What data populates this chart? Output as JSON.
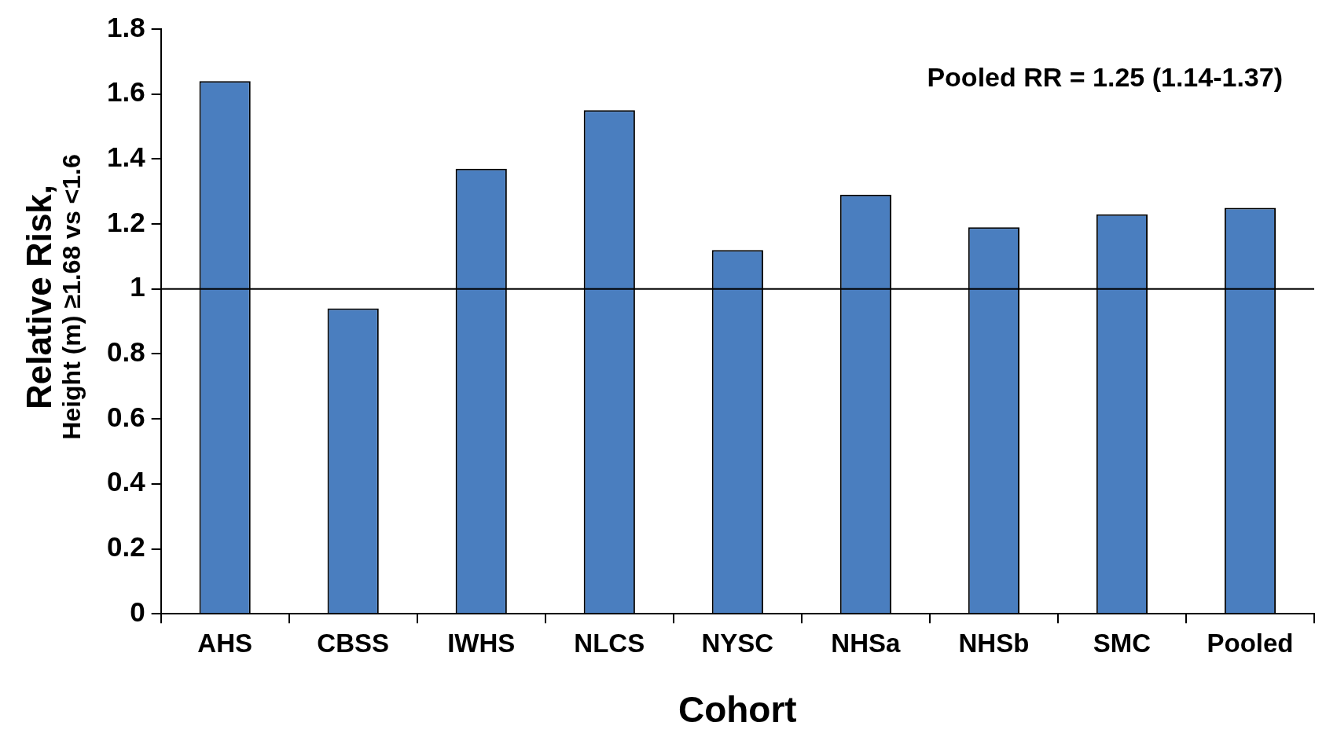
{
  "chart_data": {
    "type": "bar",
    "xlabel": "Cohort",
    "ylabel": "Relative Risk,\nHeight (m) ≥1.68 vs <1.6",
    "categories": [
      "AHS",
      "CBSS",
      "IWHS",
      "NLCS",
      "NYSC",
      "NHSa",
      "NHSb",
      "SMC",
      "Pooled"
    ],
    "values": [
      1.64,
      0.94,
      1.37,
      1.55,
      1.12,
      1.29,
      1.19,
      1.23,
      1.25
    ],
    "color": "#4a7ebf",
    "ylim": [
      0,
      1.8
    ],
    "yticks": [
      0,
      0.2,
      0.4,
      0.6,
      0.8,
      1,
      1.2,
      1.4,
      1.6,
      1.8
    ],
    "ref_lines": [
      {
        "axis": "y",
        "value": 1,
        "color": "#000000"
      }
    ],
    "annotations": [
      "Pooled RR = 1.25 (1.14-1.37)"
    ],
    "grid": false,
    "legend": false
  }
}
